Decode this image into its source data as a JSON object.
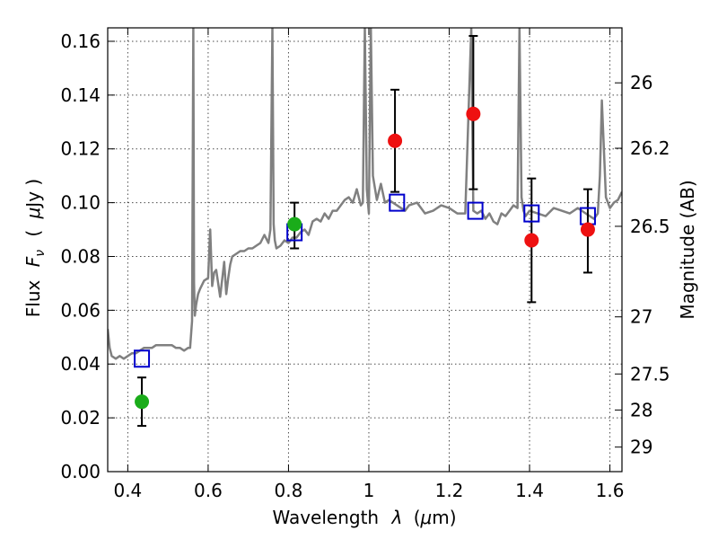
{
  "chart_data": {
    "type": "scatter",
    "xlabel_text": "Wavelength",
    "xlabel_symbol": "λ",
    "xlabel_unit_open": "(",
    "xlabel_unit_mu": "μ",
    "xlabel_unit_rest": "m)",
    "ylabel_flux": "Flux",
    "ylabel_symbol": "F",
    "ylabel_sub": "ν",
    "ylabel_unit_open": "(",
    "ylabel_unit_mu": "μ",
    "ylabel_unit_rest": "Jy )",
    "y2label": "Magnitude (AB)",
    "xlim": [
      0.35,
      1.63
    ],
    "ylim": [
      0.0,
      0.165
    ],
    "grid": true,
    "x_ticks": [
      {
        "value": 0.4,
        "label": "0.4"
      },
      {
        "value": 0.6,
        "label": "0.6"
      },
      {
        "value": 0.8,
        "label": "0.8"
      },
      {
        "value": 1.0,
        "label": "1"
      },
      {
        "value": 1.2,
        "label": "1.2"
      },
      {
        "value": 1.4,
        "label": "1.4"
      },
      {
        "value": 1.6,
        "label": "1.6"
      }
    ],
    "y_ticks": [
      {
        "value": 0.0,
        "label": "0.00"
      },
      {
        "value": 0.02,
        "label": "0.02"
      },
      {
        "value": 0.04,
        "label": "0.04"
      },
      {
        "value": 0.06,
        "label": "0.06"
      },
      {
        "value": 0.08,
        "label": "0.08"
      },
      {
        "value": 0.1,
        "label": "0.10"
      },
      {
        "value": 0.12,
        "label": "0.12"
      },
      {
        "value": 0.14,
        "label": "0.14"
      },
      {
        "value": 0.16,
        "label": "0.16"
      }
    ],
    "y2_ticks": [
      {
        "mag": 26,
        "label": "26"
      },
      {
        "mag": 26.2,
        "label": "26.2"
      },
      {
        "mag": 26.5,
        "label": "26.5"
      },
      {
        "mag": 27,
        "label": "27"
      },
      {
        "mag": 27.5,
        "label": "27.5"
      },
      {
        "mag": 28,
        "label": "28"
      },
      {
        "mag": 29,
        "label": "29"
      }
    ],
    "series": [
      {
        "kind": "spectrum",
        "color": "#808080",
        "x": [
          0.35,
          0.355,
          0.36,
          0.37,
          0.38,
          0.39,
          0.4,
          0.41,
          0.42,
          0.43,
          0.44,
          0.45,
          0.46,
          0.47,
          0.48,
          0.49,
          0.5,
          0.51,
          0.52,
          0.53,
          0.54,
          0.55,
          0.555,
          0.56,
          0.563,
          0.565,
          0.567,
          0.57,
          0.575,
          0.58,
          0.59,
          0.6,
          0.605,
          0.61,
          0.615,
          0.62,
          0.63,
          0.64,
          0.645,
          0.65,
          0.655,
          0.66,
          0.67,
          0.68,
          0.69,
          0.7,
          0.71,
          0.72,
          0.73,
          0.74,
          0.75,
          0.755,
          0.76,
          0.763,
          0.766,
          0.77,
          0.78,
          0.79,
          0.8,
          0.81,
          0.82,
          0.83,
          0.84,
          0.85,
          0.86,
          0.87,
          0.88,
          0.89,
          0.9,
          0.91,
          0.92,
          0.93,
          0.94,
          0.95,
          0.96,
          0.97,
          0.98,
          0.985,
          0.99,
          0.995,
          1.0,
          1.005,
          1.01,
          1.02,
          1.03,
          1.04,
          1.05,
          1.06,
          1.07,
          1.08,
          1.09,
          1.1,
          1.12,
          1.14,
          1.16,
          1.18,
          1.2,
          1.22,
          1.24,
          1.255,
          1.26,
          1.27,
          1.28,
          1.29,
          1.3,
          1.31,
          1.32,
          1.33,
          1.34,
          1.35,
          1.36,
          1.37,
          1.375,
          1.38,
          1.385,
          1.39,
          1.4,
          1.42,
          1.44,
          1.46,
          1.48,
          1.5,
          1.52,
          1.54,
          1.56,
          1.57,
          1.575,
          1.58,
          1.59,
          1.6,
          1.61,
          1.62,
          1.63
        ],
        "y": [
          0.053,
          0.046,
          0.043,
          0.042,
          0.043,
          0.042,
          0.043,
          0.044,
          0.044,
          0.045,
          0.046,
          0.046,
          0.046,
          0.047,
          0.047,
          0.047,
          0.047,
          0.047,
          0.046,
          0.046,
          0.045,
          0.046,
          0.046,
          0.056,
          0.165,
          0.07,
          0.058,
          0.062,
          0.066,
          0.068,
          0.071,
          0.072,
          0.09,
          0.069,
          0.074,
          0.075,
          0.065,
          0.078,
          0.066,
          0.072,
          0.077,
          0.08,
          0.081,
          0.082,
          0.082,
          0.083,
          0.083,
          0.084,
          0.085,
          0.088,
          0.085,
          0.09,
          0.165,
          0.092,
          0.086,
          0.083,
          0.084,
          0.086,
          0.085,
          0.087,
          0.087,
          0.089,
          0.09,
          0.088,
          0.093,
          0.094,
          0.093,
          0.096,
          0.094,
          0.097,
          0.097,
          0.099,
          0.101,
          0.102,
          0.1,
          0.105,
          0.099,
          0.1,
          0.165,
          0.105,
          0.096,
          0.165,
          0.11,
          0.101,
          0.107,
          0.1,
          0.101,
          0.1,
          0.099,
          0.098,
          0.097,
          0.099,
          0.1,
          0.096,
          0.097,
          0.099,
          0.098,
          0.096,
          0.096,
          0.165,
          0.097,
          0.096,
          0.097,
          0.094,
          0.096,
          0.093,
          0.092,
          0.096,
          0.095,
          0.097,
          0.099,
          0.098,
          0.165,
          0.102,
          0.097,
          0.095,
          0.097,
          0.096,
          0.095,
          0.098,
          0.097,
          0.096,
          0.098,
          0.096,
          0.094,
          0.096,
          0.11,
          0.138,
          0.102,
          0.098,
          0.1,
          0.101,
          0.104
        ]
      },
      {
        "kind": "model-photometry",
        "marker": "square-open",
        "color": "#0000cc",
        "x": [
          0.435,
          0.815,
          1.07,
          1.265,
          1.405,
          1.545
        ],
        "y": [
          0.042,
          0.089,
          0.1,
          0.097,
          0.096,
          0.095
        ]
      },
      {
        "kind": "observed-optical",
        "marker": "circle",
        "color": "#1aac1a",
        "x": [
          0.435,
          0.815
        ],
        "y": [
          0.026,
          0.092
        ],
        "yerr_low": [
          0.009,
          0.009
        ],
        "yerr_high": [
          0.009,
          0.008
        ]
      },
      {
        "kind": "observed-infrared",
        "marker": "circle",
        "color": "#ee1111",
        "x": [
          1.065,
          1.26,
          1.405,
          1.545
        ],
        "y": [
          0.123,
          0.133,
          0.086,
          0.09
        ],
        "yerr_low": [
          0.019,
          0.028,
          0.023,
          0.016
        ],
        "yerr_high": [
          0.019,
          0.029,
          0.023,
          0.015
        ]
      }
    ]
  }
}
